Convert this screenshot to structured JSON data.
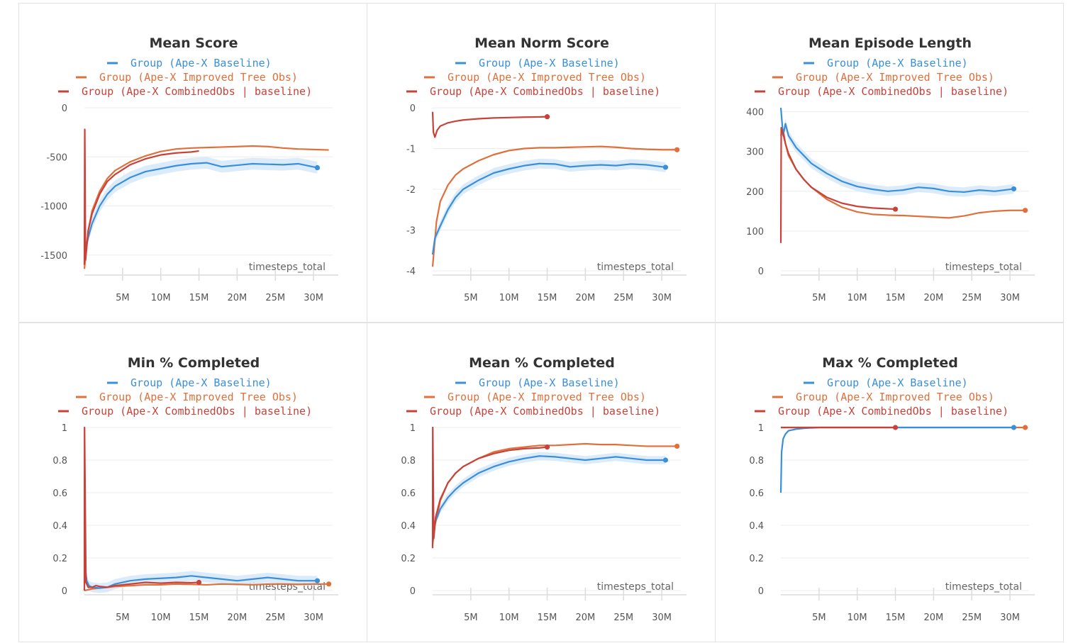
{
  "x_label": "timesteps_total",
  "colors": {
    "baseline": "#3a8fd9",
    "improved": "#e0703b",
    "combined": "#c7423a",
    "band": "#d6e8f8"
  },
  "legend": [
    {
      "key": "baseline",
      "label": "Group (Ape-X Baseline)"
    },
    {
      "key": "improved",
      "label": "Group (Ape-X Improved Tree Obs)"
    },
    {
      "key": "combined",
      "label": "Group (Ape-X CombinedObs | baseline)"
    }
  ],
  "chart_data": [
    {
      "type": "line",
      "title": "Mean Score",
      "xlabel": "timesteps_total",
      "xlim": [
        0,
        32.5
      ],
      "ylim": [
        -1660,
        0
      ],
      "x_ticks": [
        5,
        10,
        15,
        20,
        25,
        30
      ],
      "x_tick_labels": [
        "5M",
        "10M",
        "15M",
        "20M",
        "25M",
        "30M"
      ],
      "y_ticks": [
        0,
        -500,
        -1000,
        -1500
      ],
      "y_tick_labels": [
        "0",
        "-500",
        "-1000",
        "-1500"
      ],
      "series": [
        {
          "name": "Group (Ape-X Baseline)",
          "key": "baseline",
          "band": 60,
          "end_marker": true,
          "x": [
            0,
            0.5,
            1,
            2,
            3,
            4,
            6,
            8,
            10,
            12,
            14,
            16,
            18,
            20,
            22,
            24,
            26,
            28,
            30.5
          ],
          "y": [
            -1500,
            -1320,
            -1180,
            -1000,
            -880,
            -800,
            -710,
            -650,
            -620,
            -590,
            -570,
            -560,
            -600,
            -585,
            -570,
            -575,
            -580,
            -570,
            -610
          ]
        },
        {
          "name": "Group (Ape-X Improved Tree Obs)",
          "key": "improved",
          "x": [
            0,
            0.5,
            1,
            2,
            3,
            4,
            6,
            8,
            10,
            12,
            14,
            16,
            18,
            20,
            22,
            24,
            26,
            28,
            30,
            32
          ],
          "y": [
            -1640,
            -1250,
            -1050,
            -850,
            -720,
            -640,
            -550,
            -490,
            -445,
            -420,
            -410,
            -405,
            -400,
            -395,
            -390,
            -395,
            -410,
            -420,
            -425,
            -430
          ]
        },
        {
          "name": "Group (Ape-X CombinedObs | baseline)",
          "key": "combined",
          "x": [
            0,
            0.05,
            0.15,
            0.5,
            1,
            2,
            3,
            4,
            6,
            8,
            10,
            12,
            14,
            15
          ],
          "y": [
            -1600,
            -220,
            -1550,
            -1250,
            -1080,
            -880,
            -750,
            -680,
            -580,
            -520,
            -480,
            -460,
            -450,
            -440
          ]
        }
      ]
    },
    {
      "type": "line",
      "title": "Mean Norm Score",
      "xlabel": "timesteps_total",
      "xlim": [
        0,
        32.5
      ],
      "ylim": [
        -4,
        0
      ],
      "x_ticks": [
        5,
        10,
        15,
        20,
        25,
        30
      ],
      "x_tick_labels": [
        "5M",
        "10M",
        "15M",
        "20M",
        "25M",
        "30M"
      ],
      "y_ticks": [
        0,
        -1,
        -2,
        -3,
        -4
      ],
      "y_tick_labels": [
        "0",
        "-1",
        "-2",
        "-3",
        "-4"
      ],
      "series": [
        {
          "name": "Group (Ape-X Baseline)",
          "key": "baseline",
          "band": 0.12,
          "end_marker": true,
          "x": [
            0,
            0.3,
            1,
            2,
            3,
            4,
            6,
            8,
            10,
            12,
            14,
            16,
            18,
            20,
            22,
            24,
            26,
            28,
            30.5
          ],
          "y": [
            -3.6,
            -3.2,
            -2.9,
            -2.5,
            -2.2,
            -2.0,
            -1.78,
            -1.6,
            -1.5,
            -1.42,
            -1.37,
            -1.38,
            -1.45,
            -1.42,
            -1.4,
            -1.42,
            -1.38,
            -1.4,
            -1.46
          ]
        },
        {
          "name": "Group (Ape-X Improved Tree Obs)",
          "key": "improved",
          "end_marker": true,
          "x": [
            0,
            0.5,
            1,
            2,
            3,
            4,
            6,
            8,
            10,
            12,
            14,
            16,
            18,
            20,
            22,
            24,
            26,
            28,
            30,
            32
          ],
          "y": [
            -3.9,
            -2.8,
            -2.3,
            -1.9,
            -1.65,
            -1.5,
            -1.3,
            -1.15,
            -1.05,
            -1.0,
            -0.98,
            -0.98,
            -0.97,
            -0.96,
            -0.95,
            -0.97,
            -1.0,
            -1.02,
            -1.03,
            -1.03
          ]
        },
        {
          "name": "Group (Ape-X CombinedObs | baseline)",
          "key": "combined",
          "end_marker": true,
          "x": [
            0,
            0.1,
            0.3,
            0.6,
            1,
            2,
            3,
            4,
            6,
            8,
            10,
            12,
            14,
            15
          ],
          "y": [
            -0.1,
            -0.6,
            -0.72,
            -0.55,
            -0.45,
            -0.37,
            -0.33,
            -0.3,
            -0.27,
            -0.25,
            -0.24,
            -0.23,
            -0.225,
            -0.22
          ]
        }
      ]
    },
    {
      "type": "line",
      "title": "Mean Episode Length",
      "xlabel": "timesteps_total",
      "xlim": [
        0,
        32.5
      ],
      "ylim": [
        0,
        410
      ],
      "x_ticks": [
        5,
        10,
        15,
        20,
        25,
        30
      ],
      "x_tick_labels": [
        "5M",
        "10M",
        "15M",
        "20M",
        "25M",
        "30M"
      ],
      "y_ticks": [
        0,
        100,
        200,
        300,
        400
      ],
      "y_tick_labels": [
        "0",
        "100",
        "200",
        "300",
        "400"
      ],
      "series": [
        {
          "name": "Group (Ape-X Baseline)",
          "key": "baseline",
          "band": 12,
          "end_marker": true,
          "x": [
            0,
            0.3,
            0.6,
            1,
            2,
            3,
            4,
            6,
            8,
            10,
            12,
            14,
            16,
            18,
            20,
            22,
            24,
            26,
            28,
            30.5
          ],
          "y": [
            410,
            340,
            370,
            340,
            310,
            290,
            270,
            245,
            225,
            212,
            205,
            200,
            203,
            210,
            207,
            200,
            198,
            203,
            200,
            206
          ]
        },
        {
          "name": "Group (Ape-X Improved Tree Obs)",
          "key": "improved",
          "end_marker": true,
          "x": [
            0,
            0.3,
            0.6,
            1,
            2,
            3,
            4,
            6,
            8,
            10,
            12,
            14,
            16,
            18,
            20,
            22,
            24,
            26,
            28,
            30,
            32
          ],
          "y": [
            340,
            355,
            320,
            290,
            255,
            230,
            210,
            180,
            160,
            148,
            142,
            140,
            139,
            137,
            135,
            133,
            138,
            146,
            150,
            152,
            152
          ]
        },
        {
          "name": "Group (Ape-X CombinedObs | baseline)",
          "key": "combined",
          "end_marker": true,
          "x": [
            0,
            0.05,
            0.3,
            0.6,
            1,
            2,
            3,
            4,
            6,
            8,
            10,
            12,
            14,
            15
          ],
          "y": [
            70,
            360,
            345,
            320,
            295,
            255,
            230,
            210,
            185,
            170,
            162,
            158,
            156,
            155
          ]
        }
      ]
    },
    {
      "type": "line",
      "title": "Min % Completed",
      "xlabel": "timesteps_total",
      "xlim": [
        0,
        32.5
      ],
      "ylim": [
        0,
        1
      ],
      "x_ticks": [
        5,
        10,
        15,
        20,
        25,
        30
      ],
      "x_tick_labels": [
        "5M",
        "10M",
        "15M",
        "20M",
        "25M",
        "30M"
      ],
      "y_ticks": [
        0,
        0.2,
        0.4,
        0.6,
        0.8,
        1
      ],
      "y_tick_labels": [
        "0",
        "0.2",
        "0.4",
        "0.6",
        "0.8",
        "1"
      ],
      "series": [
        {
          "name": "Group (Ape-X Baseline)",
          "key": "baseline",
          "band": 0.03,
          "end_marker": true,
          "x": [
            0,
            0.1,
            0.3,
            0.6,
            1,
            2,
            3,
            4,
            6,
            8,
            10,
            12,
            14,
            16,
            18,
            20,
            22,
            24,
            26,
            28,
            30.5
          ],
          "y": [
            0.42,
            0.15,
            0.06,
            0.03,
            0.02,
            0.015,
            0.02,
            0.04,
            0.06,
            0.07,
            0.075,
            0.08,
            0.09,
            0.08,
            0.07,
            0.06,
            0.07,
            0.08,
            0.07,
            0.06,
            0.06
          ]
        },
        {
          "name": "Group (Ape-X Improved Tree Obs)",
          "key": "improved",
          "end_marker": true,
          "x": [
            0,
            1,
            2,
            3,
            4,
            6,
            8,
            10,
            12,
            14,
            16,
            18,
            20,
            22,
            24,
            26,
            28,
            30,
            32
          ],
          "y": [
            0.0,
            0.01,
            0.015,
            0.02,
            0.025,
            0.03,
            0.035,
            0.035,
            0.04,
            0.038,
            0.035,
            0.04,
            0.038,
            0.035,
            0.04,
            0.04,
            0.038,
            0.04,
            0.04
          ]
        },
        {
          "name": "Group (Ape-X CombinedObs | baseline)",
          "key": "combined",
          "end_marker": true,
          "x": [
            0,
            0.02,
            0.2,
            0.5,
            1,
            1.5,
            2,
            3,
            4,
            6,
            8,
            10,
            12,
            14,
            15
          ],
          "y": [
            0.0,
            1.0,
            0.05,
            0.02,
            0.02,
            0.03,
            0.025,
            0.02,
            0.03,
            0.04,
            0.05,
            0.045,
            0.05,
            0.048,
            0.05
          ]
        }
      ]
    },
    {
      "type": "line",
      "title": "Mean % Completed",
      "xlabel": "timesteps_total",
      "xlim": [
        0,
        32.5
      ],
      "ylim": [
        0,
        1
      ],
      "x_ticks": [
        5,
        10,
        15,
        20,
        25,
        30
      ],
      "x_tick_labels": [
        "5M",
        "10M",
        "15M",
        "20M",
        "25M",
        "30M"
      ],
      "y_ticks": [
        0,
        0.2,
        0.4,
        0.6,
        0.8,
        1
      ],
      "y_tick_labels": [
        "0",
        "0.2",
        "0.4",
        "0.6",
        "0.8",
        "1"
      ],
      "series": [
        {
          "name": "Group (Ape-X Baseline)",
          "key": "baseline",
          "band": 0.025,
          "end_marker": true,
          "x": [
            0,
            0.3,
            0.6,
            1,
            2,
            3,
            4,
            6,
            8,
            10,
            12,
            14,
            16,
            18,
            20,
            22,
            24,
            26,
            28,
            30.5
          ],
          "y": [
            0.3,
            0.42,
            0.45,
            0.5,
            0.57,
            0.62,
            0.66,
            0.72,
            0.76,
            0.79,
            0.81,
            0.825,
            0.82,
            0.81,
            0.8,
            0.81,
            0.82,
            0.81,
            0.8,
            0.8
          ]
        },
        {
          "name": "Group (Ape-X Improved Tree Obs)",
          "key": "improved",
          "end_marker": true,
          "x": [
            0,
            0.3,
            1,
            2,
            3,
            4,
            6,
            8,
            10,
            12,
            14,
            16,
            18,
            20,
            22,
            24,
            26,
            28,
            30,
            32
          ],
          "y": [
            0.28,
            0.4,
            0.55,
            0.66,
            0.72,
            0.76,
            0.81,
            0.85,
            0.87,
            0.88,
            0.89,
            0.89,
            0.895,
            0.9,
            0.895,
            0.895,
            0.89,
            0.885,
            0.885,
            0.885
          ]
        },
        {
          "name": "Group (Ape-X CombinedObs | baseline)",
          "key": "combined",
          "end_marker": true,
          "x": [
            0,
            0.02,
            0.15,
            0.4,
            1,
            2,
            3,
            4,
            6,
            8,
            10,
            12,
            14,
            15
          ],
          "y": [
            0.26,
            1.0,
            0.32,
            0.45,
            0.56,
            0.66,
            0.72,
            0.76,
            0.81,
            0.84,
            0.86,
            0.87,
            0.875,
            0.88
          ]
        }
      ]
    },
    {
      "type": "line",
      "title": "Max % Completed",
      "xlabel": "timesteps_total",
      "xlim": [
        0,
        32.5
      ],
      "ylim": [
        0,
        1
      ],
      "x_ticks": [
        5,
        10,
        15,
        20,
        25,
        30
      ],
      "x_tick_labels": [
        "5M",
        "10M",
        "15M",
        "20M",
        "25M",
        "30M"
      ],
      "y_ticks": [
        0,
        0.2,
        0.4,
        0.6,
        0.8,
        1
      ],
      "y_tick_labels": [
        "0",
        "0.2",
        "0.4",
        "0.6",
        "0.8",
        "1"
      ],
      "series": [
        {
          "name": "Group (Ape-X Baseline)",
          "key": "baseline",
          "end_marker": true,
          "x": [
            0,
            0.1,
            0.3,
            0.6,
            1,
            2,
            3,
            5,
            10,
            20,
            30.5
          ],
          "y": [
            0.6,
            0.85,
            0.93,
            0.96,
            0.98,
            0.99,
            0.995,
            1.0,
            1.0,
            1.0,
            1.0
          ]
        },
        {
          "name": "Group (Ape-X Improved Tree Obs)",
          "key": "improved",
          "end_marker": true,
          "x": [
            0,
            32
          ],
          "y": [
            1.0,
            1.0
          ]
        },
        {
          "name": "Group (Ape-X CombinedObs | baseline)",
          "key": "combined",
          "end_marker": true,
          "x": [
            0,
            15
          ],
          "y": [
            1.0,
            1.0
          ]
        }
      ]
    }
  ]
}
